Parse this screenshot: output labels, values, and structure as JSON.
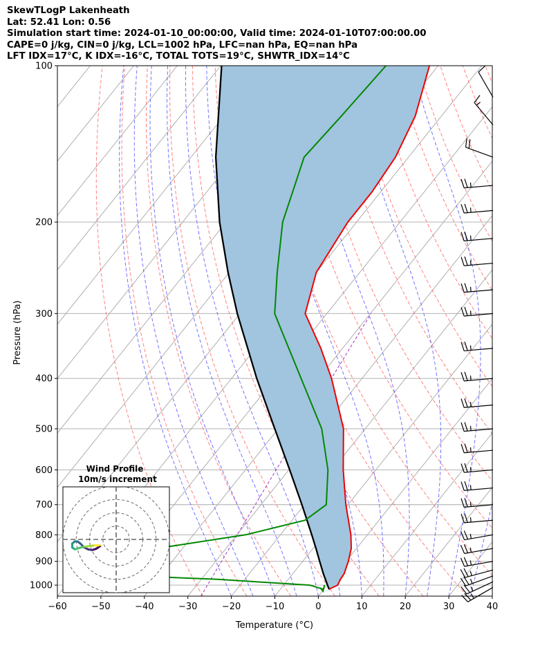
{
  "header": {
    "title": "SkewTLogP Lakenheath",
    "location": "Lat: 52.41   Lon: 0.56",
    "times": "Simulation start time: 2024-01-10_00:00:00, Valid time: 2024-01-10T07:00:00.00",
    "params": "CAPE=0 j/kg, CIN=0 j/kg, LCL=1002 hPa, LFC=nan hPa, EQ=nan hPa",
    "indices": "LFT IDX=17°C, K IDX=-16°C, TOTAL TOTS=19°C, SHWTR_IDX=14°C"
  },
  "colors": {
    "temperature": "#ee0000",
    "dewpoint": "#008800",
    "parcel": "#000000",
    "shade": "#a1c4df",
    "dry_adiabat": "#ff6b6b",
    "moist_adiabat": "#5a5aff",
    "mixing_ratio": "#9a30c8",
    "isotherm": "#a8a8a8"
  },
  "chart_data": {
    "type": "line",
    "xlabel": "Temperature (°C)",
    "ylabel": "Pressure (hPa)",
    "xlim": [
      -60,
      40
    ],
    "ylim": [
      1050,
      100
    ],
    "log_y": true,
    "grid": true,
    "x_ticks": [
      "−60",
      "−50",
      "−40",
      "−30",
      "−20",
      "−10",
      "0",
      "10",
      "20",
      "30",
      "40"
    ],
    "y_ticks": [
      "100",
      "200",
      "300",
      "400",
      "500",
      "600",
      "700",
      "800",
      "900",
      "1000"
    ],
    "temperature": [
      {
        "p": 1018,
        "t": 1.2
      },
      {
        "p": 1000,
        "t": 2.4
      },
      {
        "p": 975,
        "t": 2.0
      },
      {
        "p": 950,
        "t": 1.8
      },
      {
        "p": 900,
        "t": 0.5
      },
      {
        "p": 850,
        "t": -1.2
      },
      {
        "p": 800,
        "t": -3.8
      },
      {
        "p": 700,
        "t": -10.5
      },
      {
        "p": 600,
        "t": -17.5
      },
      {
        "p": 500,
        "t": -25
      },
      {
        "p": 400,
        "t": -37
      },
      {
        "p": 350,
        "t": -45
      },
      {
        "p": 300,
        "t": -55
      },
      {
        "p": 250,
        "t": -60
      },
      {
        "p": 200,
        "t": -62
      },
      {
        "p": 175,
        "t": -62
      },
      {
        "p": 150,
        "t": -63
      },
      {
        "p": 125,
        "t": -66
      },
      {
        "p": 100,
        "t": -72
      }
    ],
    "dewpoint": [
      {
        "p": 1018,
        "t": -0.2
      },
      {
        "p": 1000,
        "t": -4
      },
      {
        "p": 975,
        "t": -26
      },
      {
        "p": 950,
        "t": -59
      },
      {
        "p": 900,
        "t": -58
      },
      {
        "p": 850,
        "t": -46
      },
      {
        "p": 800,
        "t": -28
      },
      {
        "p": 750,
        "t": -17
      },
      {
        "p": 700,
        "t": -15
      },
      {
        "p": 600,
        "t": -21
      },
      {
        "p": 500,
        "t": -30
      },
      {
        "p": 400,
        "t": -44
      },
      {
        "p": 320,
        "t": -58
      },
      {
        "p": 300,
        "t": -62
      },
      {
        "p": 250,
        "t": -69
      },
      {
        "p": 200,
        "t": -77
      },
      {
        "p": 150,
        "t": -84
      },
      {
        "p": 125,
        "t": -83
      },
      {
        "p": 100,
        "t": -82
      }
    ],
    "parcel": [
      {
        "p": 1018,
        "t": 1.2
      },
      {
        "p": 1002,
        "t": 0.2
      },
      {
        "p": 950,
        "t": -3.0
      },
      {
        "p": 900,
        "t": -6.1
      },
      {
        "p": 850,
        "t": -9.3
      },
      {
        "p": 800,
        "t": -12.8
      },
      {
        "p": 700,
        "t": -20.6
      },
      {
        "p": 600,
        "t": -29.8
      },
      {
        "p": 500,
        "t": -40.8
      },
      {
        "p": 400,
        "t": -54.2
      },
      {
        "p": 300,
        "t": -70.6
      },
      {
        "p": 250,
        "t": -80.3
      },
      {
        "p": 200,
        "t": -91.5
      },
      {
        "p": 150,
        "t": -104.3
      },
      {
        "p": 100,
        "t": -119.8
      }
    ],
    "wind_barbs": [
      {
        "p": 1010,
        "speed_kt": 25,
        "dir": 240
      },
      {
        "p": 985,
        "speed_kt": 25,
        "dir": 245
      },
      {
        "p": 960,
        "speed_kt": 25,
        "dir": 250
      },
      {
        "p": 935,
        "speed_kt": 25,
        "dir": 255
      },
      {
        "p": 900,
        "speed_kt": 25,
        "dir": 260
      },
      {
        "p": 850,
        "speed_kt": 25,
        "dir": 260
      },
      {
        "p": 800,
        "speed_kt": 25,
        "dir": 260
      },
      {
        "p": 750,
        "speed_kt": 25,
        "dir": 265
      },
      {
        "p": 700,
        "speed_kt": 25,
        "dir": 265
      },
      {
        "p": 650,
        "speed_kt": 25,
        "dir": 265
      },
      {
        "p": 600,
        "speed_kt": 25,
        "dir": 265
      },
      {
        "p": 550,
        "speed_kt": 25,
        "dir": 265
      },
      {
        "p": 500,
        "speed_kt": 25,
        "dir": 265
      },
      {
        "p": 450,
        "speed_kt": 25,
        "dir": 265
      },
      {
        "p": 400,
        "speed_kt": 25,
        "dir": 265
      },
      {
        "p": 350,
        "speed_kt": 25,
        "dir": 265
      },
      {
        "p": 300,
        "speed_kt": 25,
        "dir": 265
      },
      {
        "p": 270,
        "speed_kt": 25,
        "dir": 265
      },
      {
        "p": 240,
        "speed_kt": 25,
        "dir": 265
      },
      {
        "p": 215,
        "speed_kt": 25,
        "dir": 265
      },
      {
        "p": 190,
        "speed_kt": 25,
        "dir": 265
      },
      {
        "p": 170,
        "speed_kt": 25,
        "dir": 265
      },
      {
        "p": 150,
        "speed_kt": 20,
        "dir": 290
      },
      {
        "p": 130,
        "speed_kt": 15,
        "dir": 320
      },
      {
        "p": 115,
        "speed_kt": 10,
        "dir": 330
      }
    ],
    "hodograph": {
      "title": "Wind Profile",
      "subtitle": "10m/s increment",
      "rings_ms": [
        10,
        20,
        30,
        40
      ],
      "range_ms": [
        -40,
        40
      ],
      "points": [
        {
          "u": -12,
          "v": -5
        },
        {
          "u": -15,
          "v": -7
        },
        {
          "u": -18,
          "v": -8
        },
        {
          "u": -21,
          "v": -7.5
        },
        {
          "u": -24,
          "v": -6
        },
        {
          "u": -27,
          "v": -3
        },
        {
          "u": -29,
          "v": -1.5
        },
        {
          "u": -31,
          "v": -1.5
        },
        {
          "u": -33,
          "v": -3
        },
        {
          "u": -33,
          "v": -6
        },
        {
          "u": -31,
          "v": -7.5
        },
        {
          "u": -28,
          "v": -6.5
        },
        {
          "u": -24,
          "v": -5.5
        },
        {
          "u": -20,
          "v": -5
        },
        {
          "u": -16,
          "v": -4.5
        },
        {
          "u": -12,
          "v": -4.5
        }
      ],
      "colors": [
        "#440154",
        "#46317e",
        "#365a8c",
        "#277e8e",
        "#1fa187",
        "#4ac16d",
        "#a0da39",
        "#fde725"
      ]
    }
  }
}
